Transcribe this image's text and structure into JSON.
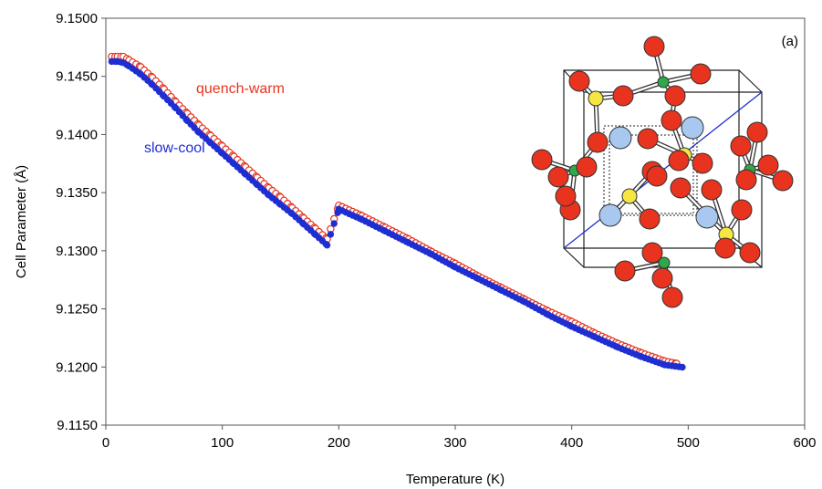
{
  "chart_data": {
    "type": "scatter",
    "panel_label": "(a)",
    "xlabel": "Temperature (K)",
    "ylabel": "Cell Parameter (Å)",
    "xlim": [
      0,
      600
    ],
    "ylim": [
      9.115,
      9.15
    ],
    "x_ticks": [
      "0",
      "100",
      "200",
      "300",
      "400",
      "500",
      "600"
    ],
    "y_ticks": [
      "9.1150",
      "9.1200",
      "9.1250",
      "9.1300",
      "9.1350",
      "9.1400",
      "9.1450",
      "9.1500"
    ],
    "grid": false,
    "series": [
      {
        "name": "quench-warm",
        "color": "#e8331e",
        "marker": "open-circle",
        "points": [
          [
            5,
            9.1467
          ],
          [
            10,
            9.1467
          ],
          [
            15,
            9.1467
          ],
          [
            20,
            9.1464
          ],
          [
            30,
            9.1458
          ],
          [
            40,
            9.1449
          ],
          [
            50,
            9.1439
          ],
          [
            60,
            9.1428
          ],
          [
            70,
            9.1418
          ],
          [
            80,
            9.1408
          ],
          [
            90,
            9.1399
          ],
          [
            100,
            9.139
          ],
          [
            110,
            9.1381
          ],
          [
            120,
            9.1372
          ],
          [
            130,
            9.1363
          ],
          [
            140,
            9.1354
          ],
          [
            150,
            9.1346
          ],
          [
            160,
            9.1337
          ],
          [
            170,
            9.1328
          ],
          [
            180,
            9.1319
          ],
          [
            190,
            9.131
          ],
          [
            200,
            9.1339
          ],
          [
            220,
            9.133
          ],
          [
            240,
            9.132
          ],
          [
            260,
            9.131
          ],
          [
            280,
            9.1299
          ],
          [
            300,
            9.1289
          ],
          [
            320,
            9.1278
          ],
          [
            340,
            9.1268
          ],
          [
            360,
            9.1258
          ],
          [
            380,
            9.1248
          ],
          [
            400,
            9.1239
          ],
          [
            420,
            9.1229
          ],
          [
            440,
            9.122
          ],
          [
            460,
            9.1212
          ],
          [
            480,
            9.1205
          ],
          [
            490,
            9.1203
          ]
        ]
      },
      {
        "name": "slow-cool",
        "color": "#1f2ed1",
        "marker": "filled-circle",
        "points": [
          [
            5,
            9.1464
          ],
          [
            10,
            9.1464
          ],
          [
            15,
            9.1463
          ],
          [
            20,
            9.146
          ],
          [
            30,
            9.1453
          ],
          [
            40,
            9.1444
          ],
          [
            50,
            9.1434
          ],
          [
            60,
            9.1424
          ],
          [
            70,
            9.1413
          ],
          [
            80,
            9.1403
          ],
          [
            90,
            9.1394
          ],
          [
            100,
            9.1385
          ],
          [
            110,
            9.1376
          ],
          [
            120,
            9.1367
          ],
          [
            130,
            9.1358
          ],
          [
            140,
            9.1349
          ],
          [
            150,
            9.1341
          ],
          [
            160,
            9.1333
          ],
          [
            170,
            9.1324
          ],
          [
            180,
            9.1315
          ],
          [
            190,
            9.1306
          ],
          [
            200,
            9.1337
          ],
          [
            220,
            9.1328
          ],
          [
            240,
            9.1318
          ],
          [
            260,
            9.1308
          ],
          [
            280,
            9.1298
          ],
          [
            300,
            9.1287
          ],
          [
            320,
            9.1277
          ],
          [
            340,
            9.1267
          ],
          [
            360,
            9.1257
          ],
          [
            380,
            9.1246
          ],
          [
            400,
            9.1236
          ],
          [
            420,
            9.1227
          ],
          [
            440,
            9.1218
          ],
          [
            460,
            9.121
          ],
          [
            480,
            9.1203
          ],
          [
            495,
            9.1201
          ]
        ]
      }
    ]
  },
  "inset": {
    "oxygen_color": "#e8331e",
    "large_ion_color": "#a8c8f0",
    "metal_color": "#f5e642",
    "tetra_color": "#2fa84a"
  }
}
